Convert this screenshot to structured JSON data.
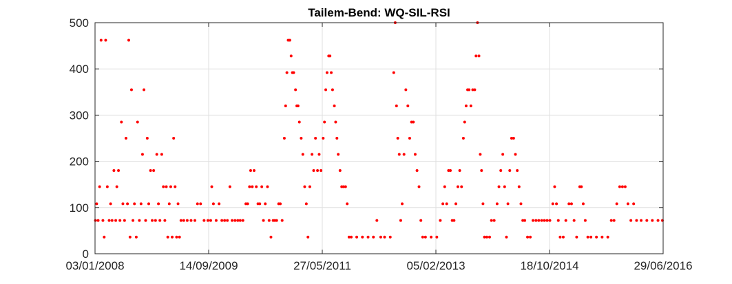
{
  "chart_data": {
    "type": "scatter",
    "title": "Tailem-Bend: WQ-SIL-RSI",
    "xlabel": "",
    "ylabel": "",
    "x_axis_type": "date",
    "xlim": [
      "2008-01-03",
      "2016-06-29"
    ],
    "ylim": [
      0,
      500
    ],
    "x_ticks": [
      "03/01/2008",
      "14/09/2009",
      "27/05/2011",
      "05/02/2013",
      "18/10/2014",
      "29/06/2016"
    ],
    "y_ticks": [
      "0",
      "100",
      "200",
      "300",
      "400",
      "500"
    ],
    "grid": true,
    "legend": "none",
    "marker_color": "#ff0000",
    "series": [
      {
        "points": [
          [
            "2008-01-05",
            72
          ],
          [
            "2008-01-12",
            108
          ],
          [
            "2008-01-20",
            72
          ],
          [
            "2008-01-28",
            145
          ],
          [
            "2008-02-05",
            462
          ],
          [
            "2008-02-15",
            72
          ],
          [
            "2008-02-22",
            36
          ],
          [
            "2008-03-01",
            462
          ],
          [
            "2008-03-10",
            145
          ],
          [
            "2008-03-20",
            72
          ],
          [
            "2008-03-28",
            108
          ],
          [
            "2008-04-05",
            72
          ],
          [
            "2008-04-15",
            180
          ],
          [
            "2008-04-25",
            72
          ],
          [
            "2008-05-01",
            145
          ],
          [
            "2008-05-10",
            180
          ],
          [
            "2008-05-18",
            72
          ],
          [
            "2008-05-26",
            285
          ],
          [
            "2008-06-03",
            108
          ],
          [
            "2008-06-12",
            72
          ],
          [
            "2008-06-20",
            250
          ],
          [
            "2008-06-28",
            108
          ],
          [
            "2008-07-05",
            462
          ],
          [
            "2008-07-12",
            36
          ],
          [
            "2008-07-20",
            355
          ],
          [
            "2008-07-28",
            72
          ],
          [
            "2008-08-05",
            108
          ],
          [
            "2008-08-15",
            36
          ],
          [
            "2008-08-22",
            285
          ],
          [
            "2008-09-01",
            72
          ],
          [
            "2008-09-10",
            108
          ],
          [
            "2008-09-18",
            215
          ],
          [
            "2008-09-26",
            355
          ],
          [
            "2008-10-05",
            72
          ],
          [
            "2008-10-14",
            250
          ],
          [
            "2008-10-22",
            108
          ],
          [
            "2008-11-01",
            180
          ],
          [
            "2008-11-10",
            72
          ],
          [
            "2008-11-18",
            180
          ],
          [
            "2008-11-28",
            72
          ],
          [
            "2008-12-05",
            215
          ],
          [
            "2008-12-14",
            108
          ],
          [
            "2008-12-22",
            72
          ],
          [
            "2009-01-01",
            215
          ],
          [
            "2009-01-10",
            145
          ],
          [
            "2009-01-18",
            72
          ],
          [
            "2009-01-26",
            145
          ],
          [
            "2009-02-03",
            36
          ],
          [
            "2009-02-11",
            108
          ],
          [
            "2009-02-19",
            145
          ],
          [
            "2009-02-27",
            36
          ],
          [
            "2009-03-07",
            250
          ],
          [
            "2009-03-15",
            145
          ],
          [
            "2009-03-23",
            36
          ],
          [
            "2009-03-31",
            108
          ],
          [
            "2009-04-08",
            36
          ],
          [
            "2009-04-16",
            72
          ],
          [
            "2009-05-01",
            72
          ],
          [
            "2009-05-20",
            72
          ],
          [
            "2009-06-10",
            72
          ],
          [
            "2009-07-01",
            72
          ],
          [
            "2009-07-15",
            108
          ],
          [
            "2009-08-01",
            108
          ],
          [
            "2009-08-20",
            72
          ],
          [
            "2009-09-10",
            72
          ],
          [
            "2009-09-25",
            72
          ],
          [
            "2009-10-01",
            145
          ],
          [
            "2009-10-10",
            108
          ],
          [
            "2009-10-25",
            72
          ],
          [
            "2009-11-10",
            108
          ],
          [
            "2009-11-25",
            72
          ],
          [
            "2009-12-10",
            72
          ],
          [
            "2009-12-25",
            72
          ],
          [
            "2010-01-08",
            145
          ],
          [
            "2010-01-20",
            72
          ],
          [
            "2010-02-05",
            72
          ],
          [
            "2010-02-20",
            72
          ],
          [
            "2010-03-05",
            72
          ],
          [
            "2010-03-20",
            72
          ],
          [
            "2010-04-05",
            108
          ],
          [
            "2010-04-15",
            108
          ],
          [
            "2010-04-25",
            145
          ],
          [
            "2010-05-01",
            180
          ],
          [
            "2010-05-10",
            145
          ],
          [
            "2010-05-20",
            180
          ],
          [
            "2010-06-01",
            145
          ],
          [
            "2010-06-10",
            108
          ],
          [
            "2010-06-20",
            108
          ],
          [
            "2010-07-01",
            145
          ],
          [
            "2010-07-10",
            72
          ],
          [
            "2010-07-20",
            108
          ],
          [
            "2010-08-01",
            145
          ],
          [
            "2010-08-10",
            72
          ],
          [
            "2010-08-20",
            36
          ],
          [
            "2010-09-01",
            72
          ],
          [
            "2010-09-10",
            72
          ],
          [
            "2010-09-20",
            72
          ],
          [
            "2010-10-01",
            108
          ],
          [
            "2010-10-10",
            108
          ],
          [
            "2010-10-20",
            72
          ],
          [
            "2010-11-01",
            250
          ],
          [
            "2010-11-08",
            320
          ],
          [
            "2010-11-15",
            392
          ],
          [
            "2010-11-22",
            462
          ],
          [
            "2010-12-01",
            462
          ],
          [
            "2010-12-08",
            428
          ],
          [
            "2010-12-15",
            392
          ],
          [
            "2010-12-22",
            392
          ],
          [
            "2011-01-01",
            355
          ],
          [
            "2011-01-08",
            320
          ],
          [
            "2011-01-15",
            320
          ],
          [
            "2011-01-22",
            285
          ],
          [
            "2011-02-01",
            250
          ],
          [
            "2011-02-10",
            215
          ],
          [
            "2011-02-20",
            145
          ],
          [
            "2011-03-01",
            108
          ],
          [
            "2011-03-10",
            36
          ],
          [
            "2011-03-20",
            145
          ],
          [
            "2011-04-01",
            215
          ],
          [
            "2011-04-10",
            180
          ],
          [
            "2011-04-20",
            250
          ],
          [
            "2011-05-01",
            180
          ],
          [
            "2011-05-10",
            215
          ],
          [
            "2011-05-20",
            180
          ],
          [
            "2011-06-01",
            250
          ],
          [
            "2011-06-08",
            285
          ],
          [
            "2011-06-15",
            355
          ],
          [
            "2011-06-22",
            392
          ],
          [
            "2011-07-01",
            428
          ],
          [
            "2011-07-08",
            428
          ],
          [
            "2011-07-15",
            392
          ],
          [
            "2011-07-22",
            355
          ],
          [
            "2011-08-01",
            320
          ],
          [
            "2011-08-08",
            285
          ],
          [
            "2011-08-15",
            250
          ],
          [
            "2011-08-22",
            215
          ],
          [
            "2011-09-01",
            180
          ],
          [
            "2011-09-10",
            145
          ],
          [
            "2011-09-20",
            145
          ],
          [
            "2011-10-01",
            145
          ],
          [
            "2011-10-10",
            108
          ],
          [
            "2011-10-20",
            36
          ],
          [
            "2011-11-01",
            36
          ],
          [
            "2011-12-01",
            36
          ],
          [
            "2012-01-01",
            36
          ],
          [
            "2012-02-01",
            36
          ],
          [
            "2012-03-01",
            36
          ],
          [
            "2012-03-20",
            72
          ],
          [
            "2012-04-10",
            36
          ],
          [
            "2012-05-01",
            36
          ],
          [
            "2012-06-01",
            36
          ],
          [
            "2012-06-20",
            392
          ],
          [
            "2012-06-28",
            500
          ],
          [
            "2012-07-05",
            320
          ],
          [
            "2012-07-12",
            250
          ],
          [
            "2012-07-20",
            215
          ],
          [
            "2012-07-28",
            72
          ],
          [
            "2012-08-05",
            108
          ],
          [
            "2012-08-15",
            215
          ],
          [
            "2012-08-25",
            355
          ],
          [
            "2012-09-05",
            320
          ],
          [
            "2012-09-15",
            250
          ],
          [
            "2012-09-25",
            285
          ],
          [
            "2012-10-05",
            285
          ],
          [
            "2012-10-15",
            215
          ],
          [
            "2012-10-25",
            180
          ],
          [
            "2012-11-05",
            145
          ],
          [
            "2012-11-15",
            72
          ],
          [
            "2012-11-25",
            36
          ],
          [
            "2012-12-10",
            36
          ],
          [
            "2013-01-10",
            36
          ],
          [
            "2013-02-10",
            36
          ],
          [
            "2013-03-01",
            72
          ],
          [
            "2013-03-15",
            108
          ],
          [
            "2013-03-25",
            145
          ],
          [
            "2013-04-05",
            108
          ],
          [
            "2013-04-15",
            180
          ],
          [
            "2013-04-25",
            180
          ],
          [
            "2013-05-05",
            72
          ],
          [
            "2013-05-15",
            72
          ],
          [
            "2013-05-25",
            108
          ],
          [
            "2013-06-05",
            145
          ],
          [
            "2013-06-15",
            180
          ],
          [
            "2013-06-25",
            145
          ],
          [
            "2013-07-05",
            250
          ],
          [
            "2013-07-12",
            285
          ],
          [
            "2013-07-20",
            320
          ],
          [
            "2013-07-28",
            355
          ],
          [
            "2013-08-05",
            355
          ],
          [
            "2013-08-15",
            320
          ],
          [
            "2013-08-25",
            355
          ],
          [
            "2013-09-05",
            355
          ],
          [
            "2013-09-12",
            428
          ],
          [
            "2013-09-20",
            500
          ],
          [
            "2013-09-28",
            428
          ],
          [
            "2013-10-05",
            215
          ],
          [
            "2013-10-12",
            180
          ],
          [
            "2013-10-20",
            108
          ],
          [
            "2013-10-28",
            36
          ],
          [
            "2013-11-10",
            36
          ],
          [
            "2013-11-25",
            36
          ],
          [
            "2013-12-05",
            72
          ],
          [
            "2013-12-20",
            72
          ],
          [
            "2014-01-05",
            108
          ],
          [
            "2014-01-15",
            145
          ],
          [
            "2014-01-25",
            180
          ],
          [
            "2014-02-05",
            215
          ],
          [
            "2014-02-15",
            145
          ],
          [
            "2014-02-25",
            36
          ],
          [
            "2014-03-05",
            108
          ],
          [
            "2014-03-15",
            180
          ],
          [
            "2014-03-25",
            250
          ],
          [
            "2014-04-05",
            250
          ],
          [
            "2014-04-15",
            215
          ],
          [
            "2014-04-25",
            180
          ],
          [
            "2014-05-05",
            145
          ],
          [
            "2014-05-15",
            108
          ],
          [
            "2014-05-25",
            72
          ],
          [
            "2014-06-05",
            72
          ],
          [
            "2014-06-20",
            36
          ],
          [
            "2014-07-05",
            36
          ],
          [
            "2014-07-20",
            72
          ],
          [
            "2014-08-05",
            72
          ],
          [
            "2014-08-20",
            72
          ],
          [
            "2014-09-05",
            72
          ],
          [
            "2014-09-20",
            72
          ],
          [
            "2014-10-05",
            72
          ],
          [
            "2014-10-20",
            72
          ],
          [
            "2014-11-05",
            108
          ],
          [
            "2014-11-15",
            145
          ],
          [
            "2014-11-25",
            108
          ],
          [
            "2014-12-05",
            72
          ],
          [
            "2014-12-15",
            36
          ],
          [
            "2015-01-01",
            36
          ],
          [
            "2015-01-15",
            72
          ],
          [
            "2015-02-01",
            108
          ],
          [
            "2015-02-15",
            108
          ],
          [
            "2015-03-01",
            72
          ],
          [
            "2015-03-15",
            36
          ],
          [
            "2015-04-01",
            145
          ],
          [
            "2015-04-10",
            145
          ],
          [
            "2015-04-20",
            108
          ],
          [
            "2015-05-01",
            72
          ],
          [
            "2015-05-15",
            36
          ],
          [
            "2015-06-01",
            36
          ],
          [
            "2015-07-01",
            36
          ],
          [
            "2015-08-01",
            36
          ],
          [
            "2015-09-01",
            36
          ],
          [
            "2015-09-20",
            72
          ],
          [
            "2015-10-05",
            72
          ],
          [
            "2015-10-20",
            108
          ],
          [
            "2015-11-05",
            145
          ],
          [
            "2015-11-20",
            145
          ],
          [
            "2015-12-05",
            145
          ],
          [
            "2015-12-20",
            108
          ],
          [
            "2016-01-05",
            72
          ],
          [
            "2016-01-20",
            108
          ],
          [
            "2016-02-05",
            72
          ],
          [
            "2016-03-01",
            72
          ],
          [
            "2016-04-01",
            72
          ],
          [
            "2016-05-01",
            72
          ],
          [
            "2016-06-01",
            72
          ],
          [
            "2016-06-25",
            72
          ]
        ]
      }
    ]
  }
}
